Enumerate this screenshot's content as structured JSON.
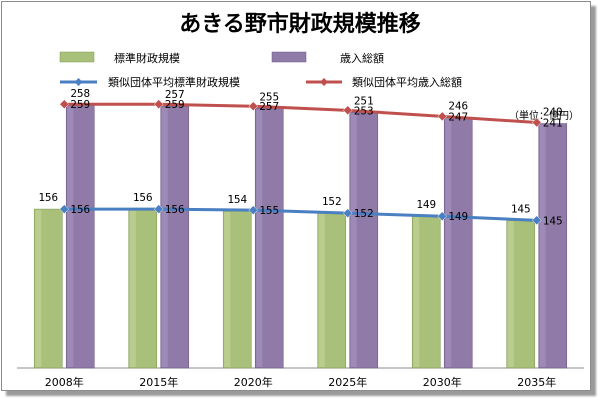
{
  "chart_data": {
    "type": "bar",
    "title": "あきる野市財政規模推移",
    "unit": "（単位：億円）",
    "categories": [
      "2008年",
      "2015年",
      "2020年",
      "2025年",
      "2030年",
      "2035年"
    ],
    "series": [
      {
        "name": "標準財政規模",
        "kind": "bar",
        "color": "#a9c07a",
        "values": [
          156,
          156,
          154,
          152,
          149,
          145
        ]
      },
      {
        "name": "歳入総額",
        "kind": "bar",
        "color": "#8f7aa8",
        "values": [
          258,
          257,
          255,
          251,
          246,
          240
        ]
      },
      {
        "name": "類似団体平均標準財政規模",
        "kind": "line",
        "color": "#4a7fc1",
        "values": [
          156,
          156,
          155,
          152,
          149,
          145
        ]
      },
      {
        "name": "類似団体平均歳入総額",
        "kind": "line",
        "color": "#c0504d",
        "values": [
          259,
          259,
          257,
          253,
          247,
          241
        ]
      }
    ],
    "ylim": [
      0,
      270
    ],
    "grid": false,
    "legend_position": "top"
  }
}
